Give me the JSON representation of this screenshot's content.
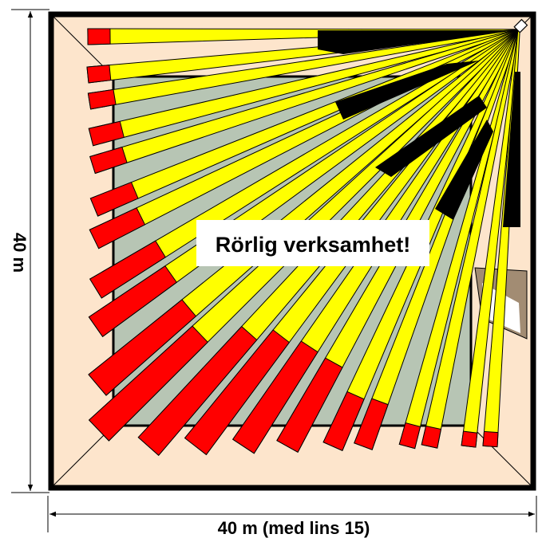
{
  "labels": {
    "height": "40 m",
    "width": "40 m (med lins 15)",
    "callout": "Rörlig verksamhet!"
  },
  "colors": {
    "floor": "#fde5cc",
    "zone": "#b7c5b4",
    "beam_near": "#ffff00",
    "beam_far": "#ff0000",
    "shadow": "#000000",
    "door": "#a28c73"
  }
}
